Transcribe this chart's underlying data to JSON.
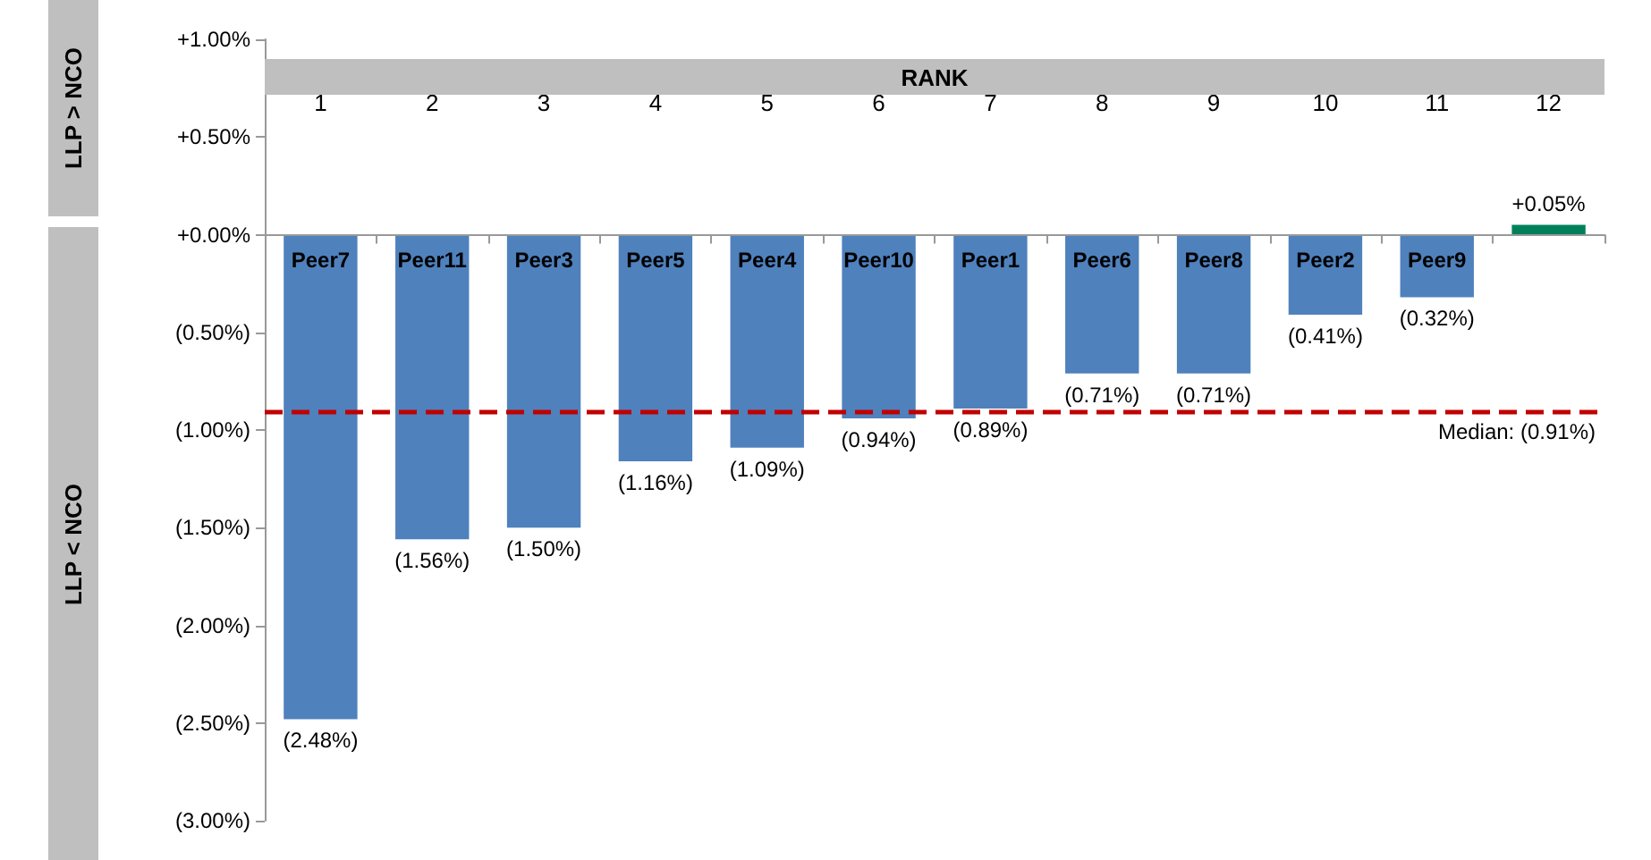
{
  "chart_data": {
    "type": "bar",
    "categories": [
      "Peer7",
      "Peer11",
      "Peer3",
      "Peer5",
      "Peer4",
      "Peer10",
      "Peer1",
      "Peer6",
      "Peer8",
      "Peer2",
      "Peer9",
      null
    ],
    "values": [
      -2.48,
      -1.56,
      -1.5,
      -1.16,
      -1.09,
      -0.94,
      -0.89,
      -0.71,
      -0.71,
      -0.41,
      -0.32,
      0.05
    ],
    "colors": [
      "#4f81bd",
      "#4f81bd",
      "#4f81bd",
      "#4f81bd",
      "#4f81bd",
      "#4f81bd",
      "#4f81bd",
      "#4f81bd",
      "#4f81bd",
      "#4f81bd",
      "#4f81bd",
      "#00805a"
    ],
    "value_labels": [
      "(2.48%)",
      "(1.56%)",
      "(1.50%)",
      "(1.16%)",
      "(1.09%)",
      "(0.94%)",
      "(0.89%)",
      "(0.71%)",
      "(0.71%)",
      "(0.41%)",
      "(0.32%)",
      "+0.05%"
    ],
    "ylim": [
      -3,
      1
    ],
    "yticks": [
      {
        "value": 1,
        "label": "+1.00%"
      },
      {
        "value": 0.5,
        "label": "+0.50%"
      },
      {
        "value": 0,
        "label": "+0.00%"
      },
      {
        "value": -0.5,
        "label": "(0.50%)"
      },
      {
        "value": -1,
        "label": "(1.00%)"
      },
      {
        "value": -1.5,
        "label": "(1.50%)"
      },
      {
        "value": -2,
        "label": "(2.00%)"
      },
      {
        "value": -2.5,
        "label": "(2.50%)"
      },
      {
        "value": -3,
        "label": "(3.00%)"
      }
    ],
    "ref_lines": [
      {
        "axis": "y",
        "value": -0.91,
        "label": "Median: (0.91%)",
        "color": "#c00000",
        "line_style": "dashed"
      }
    ],
    "x2label": "RANK",
    "x2lim": [
      0.5,
      12.5
    ],
    "x2ticks": [
      1,
      2,
      3,
      4,
      5,
      6,
      7,
      8,
      9,
      10,
      11,
      12
    ],
    "annotations": [
      "LLP > NCO",
      "LLP < NCO"
    ]
  }
}
